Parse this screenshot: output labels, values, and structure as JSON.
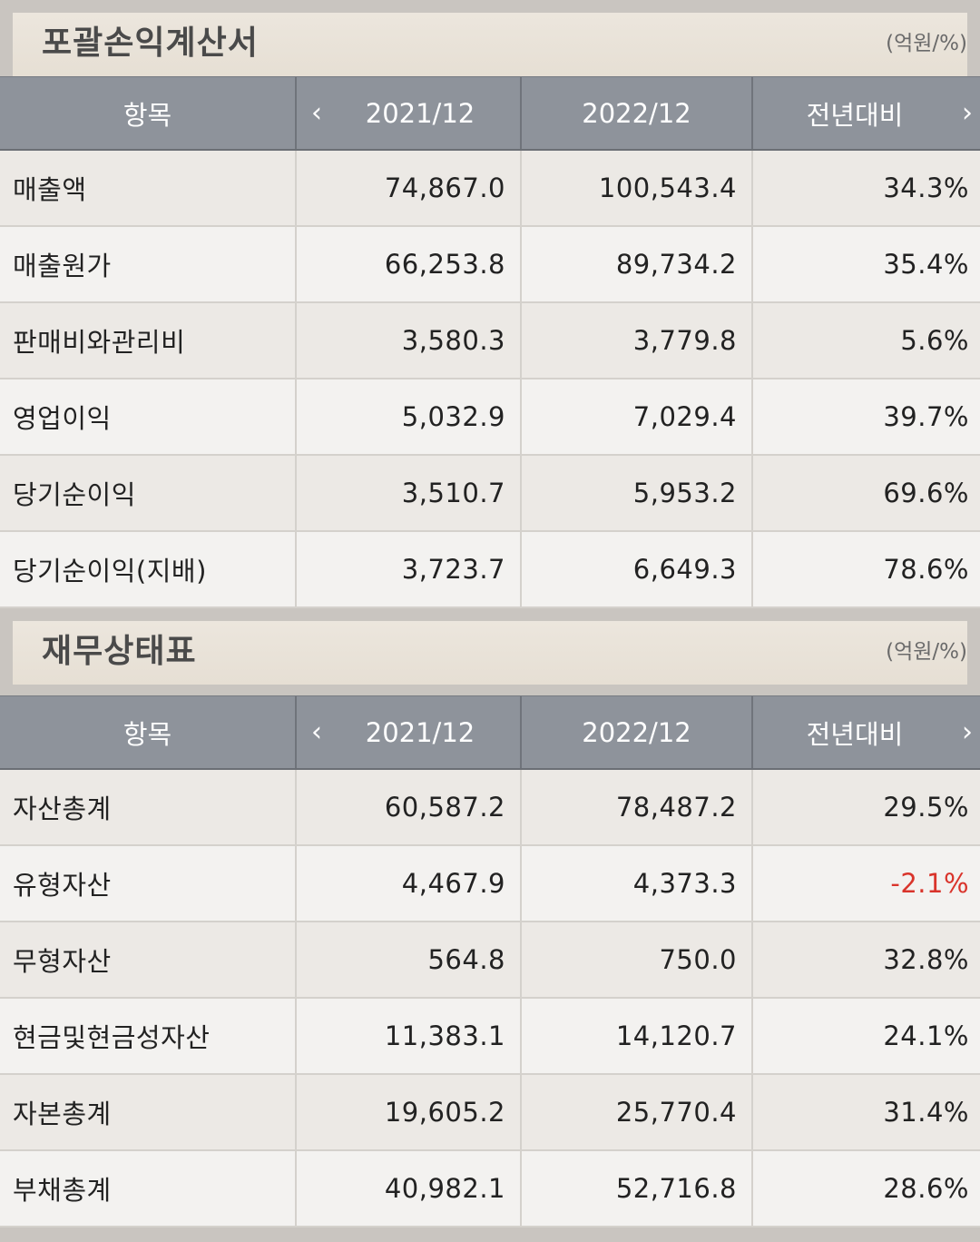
{
  "income": {
    "title": "포괄손익계산서",
    "unit": "(억원/%)",
    "headers": {
      "item": "항목",
      "prev_arrow": "‹",
      "col_a": "2021/12",
      "col_b": "2022/12",
      "col_c": "전년대비",
      "next_arrow": "›"
    },
    "rows": [
      {
        "label": "매출액",
        "a": "74,867.0",
        "b": "100,543.4",
        "c": "34.3%"
      },
      {
        "label": "매출원가",
        "a": "66,253.8",
        "b": "89,734.2",
        "c": "35.4%"
      },
      {
        "label": "판매비와관리비",
        "a": "3,580.3",
        "b": "3,779.8",
        "c": "5.6%"
      },
      {
        "label": "영업이익",
        "a": "5,032.9",
        "b": "7,029.4",
        "c": "39.7%"
      },
      {
        "label": "당기순이익",
        "a": "3,510.7",
        "b": "5,953.2",
        "c": "69.6%"
      },
      {
        "label": "당기순이익(지배)",
        "a": "3,723.7",
        "b": "6,649.3",
        "c": "78.6%"
      }
    ]
  },
  "balance": {
    "title": "재무상태표",
    "unit": "(억원/%)",
    "headers": {
      "item": "항목",
      "prev_arrow": "‹",
      "col_a": "2021/12",
      "col_b": "2022/12",
      "col_c": "전년대비",
      "next_arrow": "›"
    },
    "rows": [
      {
        "label": "자산총계",
        "a": "60,587.2",
        "b": "78,487.2",
        "c": "29.5%"
      },
      {
        "label": "유형자산",
        "a": "4,467.9",
        "b": "4,373.3",
        "c": "-2.1%"
      },
      {
        "label": "무형자산",
        "a": "564.8",
        "b": "750.0",
        "c": "32.8%"
      },
      {
        "label": "현금및현금성자산",
        "a": "11,383.1",
        "b": "14,120.7",
        "c": "24.1%"
      },
      {
        "label": "자본총계",
        "a": "19,605.2",
        "b": "25,770.4",
        "c": "31.4%"
      },
      {
        "label": "부채총계",
        "a": "40,982.1",
        "b": "52,716.8",
        "c": "28.6%"
      }
    ]
  },
  "colors": {
    "header_bg": "#8e939b",
    "negative": "#d9342b",
    "row_odd": "#ece9e5",
    "row_even": "#f3f2f0"
  }
}
